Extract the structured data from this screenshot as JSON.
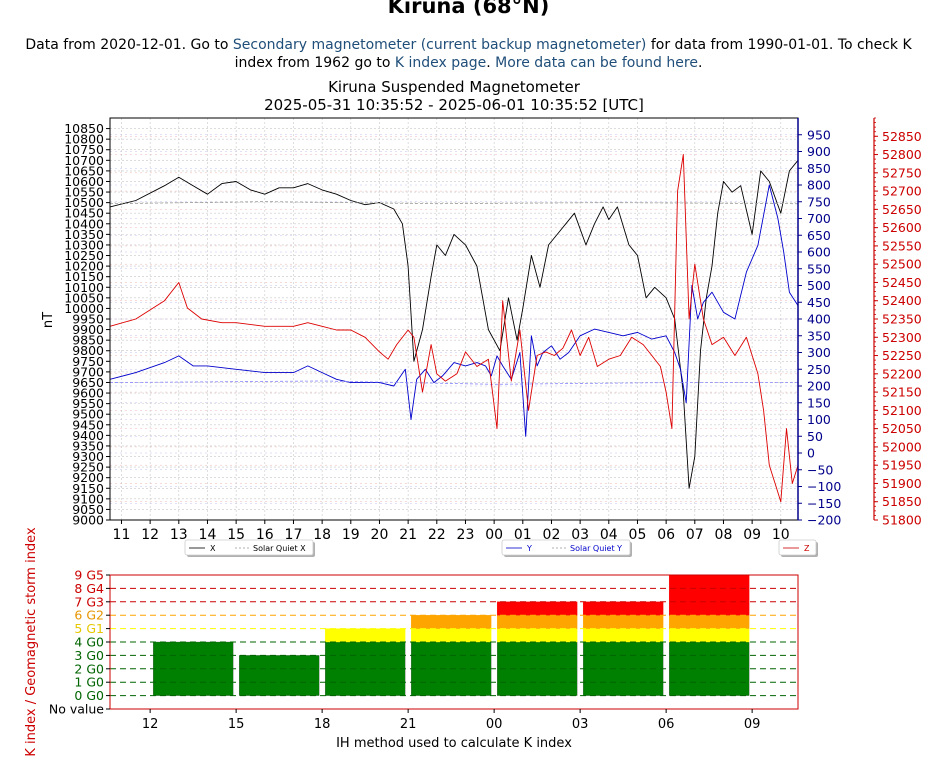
{
  "page": {
    "title": "Kiruna (68°N)",
    "intro": {
      "t1": "Data from 2020-12-01. Go to ",
      "link1": "Secondary magnetometer (current backup magnetometer)",
      "t2": " for data from 1990-01-01. To check K index from 1962 go to ",
      "link2": "K index page",
      "t3": ". ",
      "link3": "More data can be found here",
      "t4": "."
    }
  },
  "chart_data": [
    {
      "type": "line",
      "title": "Kiruna Suspended Magnetometer",
      "subtitle": "2025-05-31 10:35:52 - 2025-06-01 10:35:52 [UTC]",
      "ylabel": "nT",
      "x_ticks": [
        "11",
        "12",
        "13",
        "14",
        "15",
        "16",
        "17",
        "18",
        "19",
        "20",
        "21",
        "22",
        "23",
        "00",
        "01",
        "02",
        "03",
        "04",
        "05",
        "06",
        "07",
        "08",
        "09",
        "10"
      ],
      "x_range_hours": [
        10.6,
        34.6
      ],
      "y_left": {
        "color": "#000000",
        "range": [
          9000,
          10900
        ],
        "step": 50
      },
      "y_right1": {
        "color": "#00008b",
        "range": [
          -200,
          1000
        ],
        "tick_min": -200,
        "tick_max": 950,
        "step": 50
      },
      "y_right2": {
        "color": "#cc0000",
        "range": [
          51800,
          52900
        ],
        "tick_min": 51800,
        "tick_max": 52850,
        "step": 50
      },
      "grid": true,
      "legend": [
        {
          "label": "X",
          "quiet_label": "Solar Quiet X",
          "color": "#000000",
          "position": "bottom-left"
        },
        {
          "label": "Y",
          "quiet_label": "Solar Quiet Y",
          "color": "#0000cc",
          "position": "bottom-center"
        },
        {
          "label": "Z",
          "color": "#cc0000",
          "position": "bottom-right"
        }
      ],
      "series": [
        {
          "name": "X",
          "color": "#000000",
          "axis": "left",
          "x": [
            10.6,
            11.5,
            12.5,
            13,
            13.5,
            14,
            14.5,
            15,
            15.5,
            16,
            16.5,
            17,
            17.5,
            18,
            18.5,
            19,
            19.5,
            20,
            20.5,
            20.8,
            21.0,
            21.2,
            21.5,
            21.8,
            22.0,
            22.3,
            22.6,
            23.0,
            23.4,
            23.8,
            24.2,
            24.5,
            24.8,
            25.0,
            25.3,
            25.6,
            25.9,
            26.2,
            26.5,
            26.8,
            27.2,
            27.5,
            27.8,
            28.0,
            28.3,
            28.7,
            29.0,
            29.3,
            29.6,
            30.0,
            30.3,
            30.6,
            30.8,
            31.0,
            31.2,
            31.4,
            31.6,
            31.8,
            32.0,
            32.3,
            32.6,
            33.0,
            33.3,
            33.6,
            34.0,
            34.3,
            34.6
          ],
          "y": [
            10480,
            10510,
            10580,
            10620,
            10580,
            10540,
            10590,
            10600,
            10560,
            10540,
            10570,
            10570,
            10590,
            10560,
            10540,
            10510,
            10490,
            10500,
            10470,
            10400,
            10200,
            9750,
            9900,
            10150,
            10300,
            10250,
            10350,
            10300,
            10200,
            9900,
            9800,
            10050,
            9850,
            10000,
            10250,
            10100,
            10300,
            10350,
            10400,
            10450,
            10300,
            10400,
            10480,
            10420,
            10480,
            10300,
            10250,
            10050,
            10100,
            10050,
            9950,
            9600,
            9150,
            9300,
            9800,
            10050,
            10200,
            10450,
            10600,
            10550,
            10580,
            10350,
            10650,
            10600,
            10450,
            10650,
            10700
          ]
        },
        {
          "name": "Solar Quiet X",
          "color": "#999999",
          "axis": "left",
          "dashed": true,
          "x": [
            10.6,
            16,
            22,
            28,
            34.6
          ],
          "y": [
            10495,
            10505,
            10495,
            10500,
            10495
          ]
        },
        {
          "name": "Y",
          "color": "#0000cc",
          "axis": "right1",
          "x": [
            10.6,
            11.5,
            12.5,
            13,
            13.5,
            14,
            15,
            16,
            17,
            17.5,
            18,
            18.5,
            19,
            19.5,
            20,
            20.5,
            20.9,
            21.1,
            21.3,
            21.6,
            21.9,
            22.2,
            22.6,
            23.0,
            23.4,
            23.7,
            23.9,
            24.1,
            24.3,
            24.6,
            24.9,
            25.1,
            25.3,
            25.5,
            25.7,
            26.0,
            26.3,
            26.6,
            27.0,
            27.5,
            28.0,
            28.5,
            29.0,
            29.5,
            30.0,
            30.3,
            30.5,
            30.7,
            30.9,
            31.1,
            31.3,
            31.6,
            32.0,
            32.4,
            32.8,
            33.2,
            33.6,
            33.9,
            34.1,
            34.3,
            34.6
          ],
          "y": [
            220,
            240,
            270,
            290,
            260,
            260,
            250,
            240,
            240,
            260,
            240,
            220,
            210,
            210,
            210,
            200,
            250,
            100,
            220,
            250,
            210,
            230,
            270,
            260,
            270,
            260,
            230,
            290,
            260,
            220,
            300,
            50,
            350,
            260,
            300,
            320,
            280,
            300,
            350,
            370,
            360,
            350,
            360,
            340,
            350,
            300,
            250,
            150,
            500,
            400,
            450,
            480,
            420,
            400,
            540,
            620,
            800,
            700,
            600,
            480,
            440
          ]
        },
        {
          "name": "Solar Quiet Y",
          "color": "#8888ff",
          "axis": "right1",
          "dashed": true,
          "x": [
            10.6,
            18,
            24,
            30,
            34.6
          ],
          "y": [
            210,
            215,
            205,
            210,
            210
          ]
        },
        {
          "name": "Z",
          "color": "#dd0000",
          "axis": "right2",
          "x": [
            10.6,
            11.5,
            12.5,
            13,
            13.3,
            13.8,
            14.5,
            15,
            16,
            17,
            17.5,
            18,
            18.5,
            19,
            19.5,
            20,
            20.3,
            20.6,
            21.0,
            21.2,
            21.5,
            21.8,
            22.0,
            22.3,
            22.7,
            23.0,
            23.4,
            23.8,
            24.1,
            24.3,
            24.6,
            24.9,
            25.2,
            25.5,
            25.8,
            26.1,
            26.4,
            26.7,
            27.0,
            27.3,
            27.6,
            28.0,
            28.4,
            28.8,
            29.2,
            29.5,
            29.8,
            30.0,
            30.2,
            30.4,
            30.6,
            30.8,
            31.0,
            31.3,
            31.6,
            32.0,
            32.4,
            32.8,
            33.2,
            33.4,
            33.6,
            33.8,
            34.0,
            34.2,
            34.4,
            34.6
          ],
          "y": [
            52330,
            52350,
            52400,
            52450,
            52380,
            52350,
            52340,
            52340,
            52330,
            52330,
            52340,
            52330,
            52320,
            52320,
            52300,
            52260,
            52240,
            52280,
            52320,
            52300,
            52150,
            52280,
            52200,
            52180,
            52200,
            52260,
            52220,
            52240,
            52050,
            52400,
            52180,
            52320,
            52100,
            52250,
            52260,
            52250,
            52270,
            52320,
            52250,
            52300,
            52220,
            52240,
            52250,
            52300,
            52280,
            52250,
            52220,
            52150,
            52050,
            52700,
            52800,
            52350,
            52500,
            52350,
            52280,
            52300,
            52250,
            52300,
            52200,
            52100,
            51950,
            51900,
            51850,
            52050,
            51900,
            51950
          ]
        }
      ]
    },
    {
      "type": "bar",
      "title": "",
      "ylabel": "K index / Geomagnetic storm index",
      "xlabel": "IH method used to calculate K index",
      "x_ticks": [
        "12",
        "15",
        "18",
        "21",
        "00",
        "03",
        "06",
        "09"
      ],
      "y_ticks": [
        "No value",
        "0 G0",
        "1 G0",
        "2 G0",
        "3 G0",
        "4 G0",
        "5 G1",
        "6 G2",
        "7 G3",
        "8 G4",
        "9 G5"
      ],
      "y_tick_colors": [
        "#000000",
        "#006400",
        "#006400",
        "#006400",
        "#006400",
        "#006400",
        "#e6c800",
        "#e69500",
        "#cc0000",
        "#cc0000",
        "#cc0000"
      ],
      "threshold_lines": [
        {
          "level": 0,
          "color": "#006400"
        },
        {
          "level": 1,
          "color": "#006400"
        },
        {
          "level": 2,
          "color": "#006400"
        },
        {
          "level": 3,
          "color": "#006400"
        },
        {
          "level": 4,
          "color": "#006400"
        },
        {
          "level": 5,
          "color": "#ffff00"
        },
        {
          "level": 6,
          "color": "#ffa500"
        },
        {
          "level": 7,
          "color": "#cc0000"
        },
        {
          "level": 8,
          "color": "#cc0000"
        },
        {
          "level": 9,
          "color": "#cc0000"
        }
      ],
      "x_range_hours": [
        10.6,
        34.6
      ],
      "bars": [
        {
          "start_hour": 12,
          "end_hour": 15,
          "k": 4
        },
        {
          "start_hour": 15,
          "end_hour": 18,
          "k": 3
        },
        {
          "start_hour": 18,
          "end_hour": 21,
          "k": 5
        },
        {
          "start_hour": 21,
          "end_hour": 24,
          "k": 6
        },
        {
          "start_hour": 24,
          "end_hour": 27,
          "k": 7
        },
        {
          "start_hour": 27,
          "end_hour": 30,
          "k": 7
        },
        {
          "start_hour": 30,
          "end_hour": 33,
          "k": 9
        }
      ],
      "level_colors": {
        "green": "#008000",
        "yellow": "#ffff00",
        "orange": "#ffa500",
        "red": "#ff0000"
      }
    }
  ]
}
